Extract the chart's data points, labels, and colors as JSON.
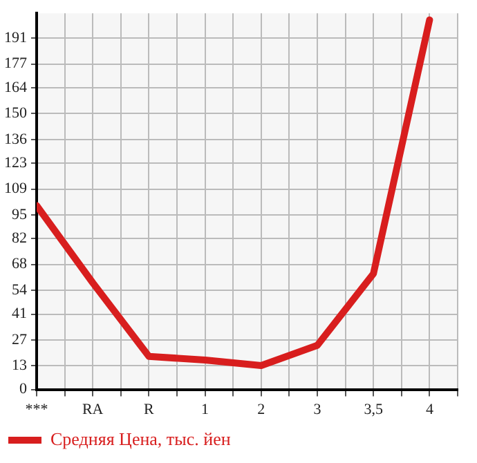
{
  "chart_data": {
    "type": "line",
    "categories": [
      "***",
      "RA",
      "R",
      "1",
      "2",
      "3",
      "3,5",
      "4"
    ],
    "series": [
      {
        "name": "Средняя Цена, тыс. йен",
        "color": "#d81e1e",
        "values": [
          100,
          58,
          18,
          16,
          13,
          24,
          63,
          201
        ]
      }
    ],
    "ylim": [
      0,
      204.6
    ],
    "yticks": [
      0,
      13,
      27,
      41,
      54,
      68,
      82,
      95,
      109,
      123,
      136,
      150,
      164,
      177,
      191
    ],
    "grid": true,
    "legend": "bottom left",
    "marker": "none",
    "line_style": "solid"
  }
}
